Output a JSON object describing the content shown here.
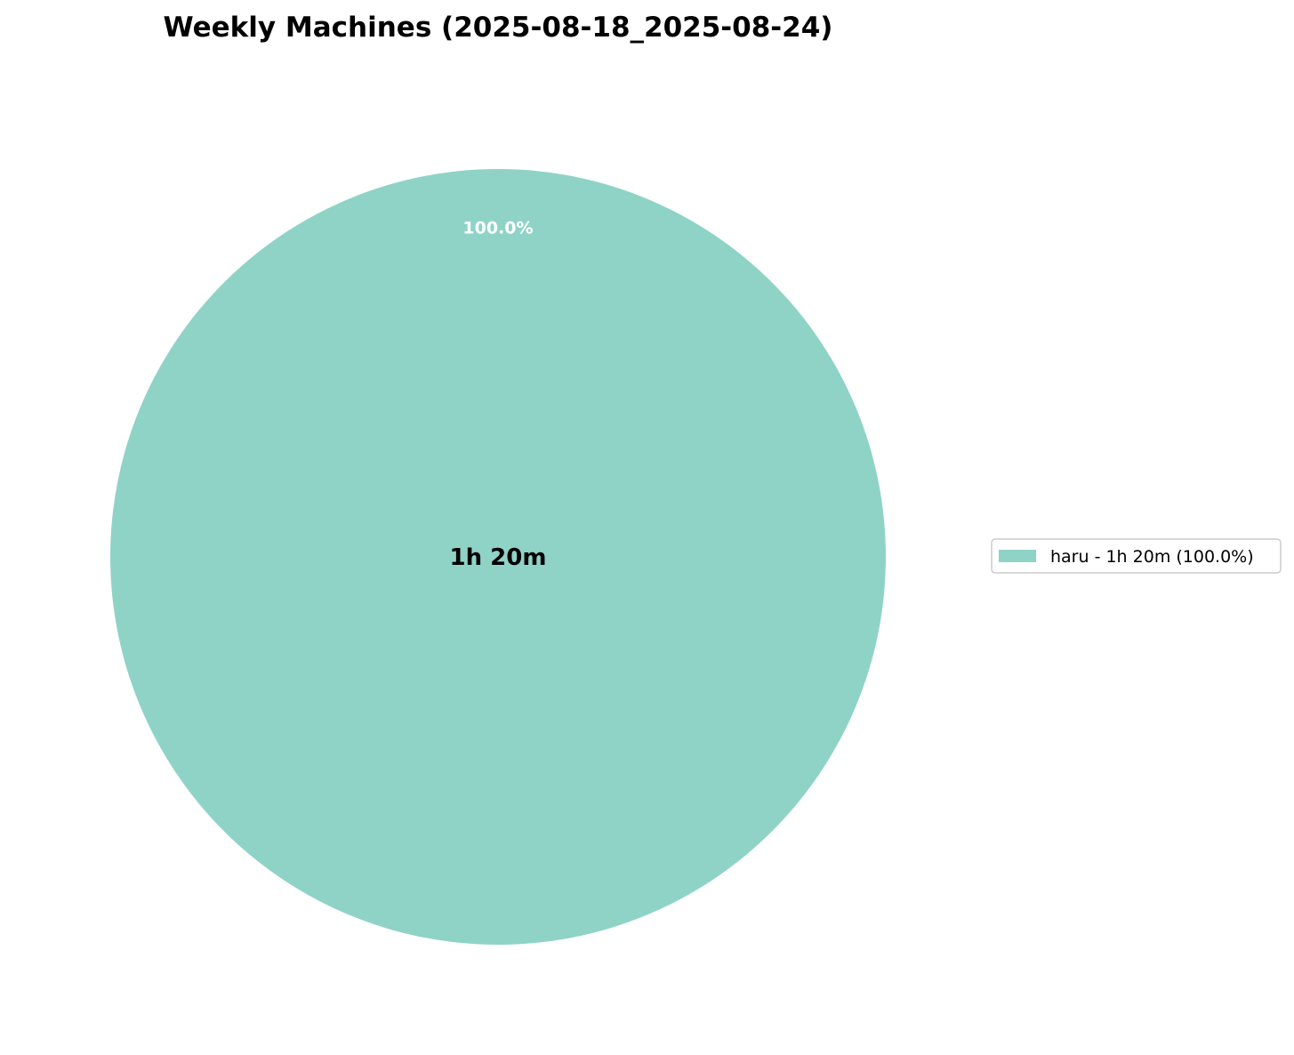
{
  "chart_data": {
    "type": "pie",
    "title": "Weekly Machines (2025-08-18_2025-08-24)",
    "center_label": "1h 20m",
    "slices": [
      {
        "label": "haru",
        "value_text": "1h 20m",
        "percent": 100.0,
        "percent_label": "100.0%",
        "legend_label": "haru - 1h 20m (100.0%)",
        "color": "#8fd3c7"
      }
    ],
    "slice_label_color": "#ffffff",
    "legend_placement": "right"
  }
}
